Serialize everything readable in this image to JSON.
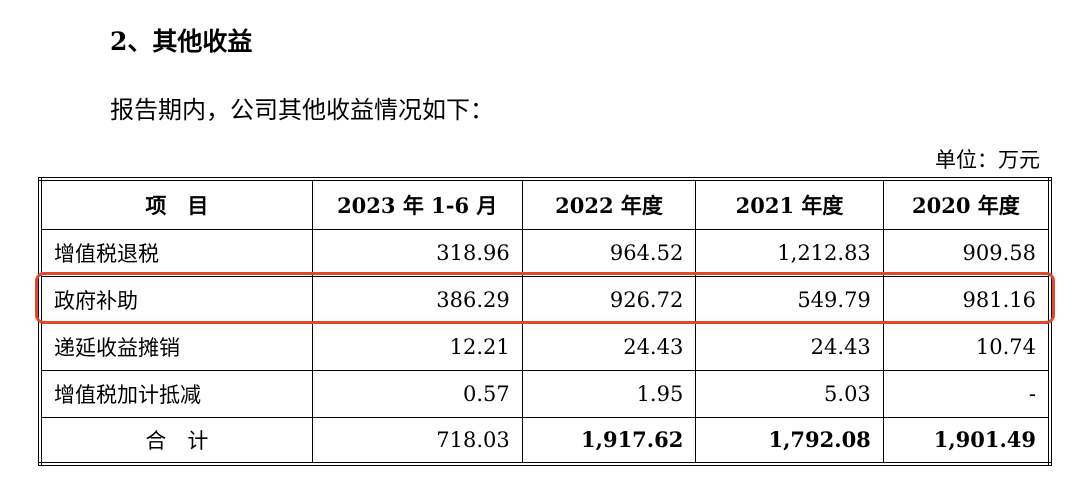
{
  "heading": "2、其他收益",
  "intro": "报告期内，公司其他收益情况如下：",
  "unit": "单位：万元",
  "table": {
    "header": [
      "项　目",
      "2023 年 1-6 月",
      "2022 年度",
      "2021 年度",
      "2020 年度"
    ],
    "rows": [
      [
        "增值税退税",
        "318.96",
        "964.52",
        "1,212.83",
        "909.58"
      ],
      [
        "政府补助",
        "386.29",
        "926.72",
        "549.79",
        "981.16"
      ],
      [
        "递延收益摊销",
        "12.21",
        "24.43",
        "24.43",
        "10.74"
      ],
      [
        "增值税加计抵减",
        "0.57",
        "1.95",
        "5.03",
        "-"
      ],
      [
        "合　计",
        "718.03",
        "1,917.62",
        "1,792.08",
        "1,901.49"
      ]
    ]
  }
}
